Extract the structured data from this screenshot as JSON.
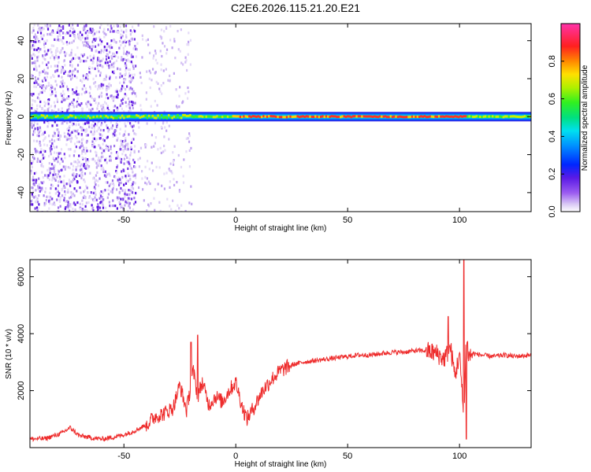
{
  "title": "C2E6.2026.115.21.20.E21",
  "colors": {
    "snr_line": "#ee2b2b",
    "spectrogram_colormap": [
      "#ffffff",
      "#d9c8f5",
      "#9b5cf0",
      "#3a0fe0",
      "#0036ff",
      "#00a8ff",
      "#00e6e0",
      "#00e070",
      "#40f020",
      "#c8f000",
      "#ffcc00",
      "#ff6600",
      "#ee1133",
      "#ff33aa"
    ]
  },
  "chart_data": [
    {
      "type": "heatmap",
      "title": "C2E6.2026.115.21.20.E21",
      "xlabel": "Height of straight line (km)",
      "ylabel": "Frequency (Hz)",
      "xlim": [
        -92,
        132
      ],
      "ylim": [
        -50,
        49
      ],
      "x_ticks": [
        -50,
        0,
        50,
        100
      ],
      "y_ticks": [
        -40,
        -20,
        0,
        20,
        40
      ],
      "colorbar": {
        "label": "Normalized spectral amplitude",
        "range": [
          0,
          1
        ],
        "ticks": [
          "0.0",
          "0.2",
          "0.4",
          "0.6",
          "0.8"
        ]
      },
      "features": [
        {
          "name": "narrow band at 0 Hz",
          "x_range": [
            -92,
            132
          ],
          "freq_center": 0,
          "amplitude": "high"
        },
        {
          "name": "broadband noise",
          "x_range": [
            -92,
            -45
          ],
          "freq_range": [
            -50,
            49
          ],
          "amplitude": "low"
        },
        {
          "name": "sparse noise",
          "x_range": [
            -45,
            -20
          ],
          "freq_range": [
            -50,
            49
          ],
          "amplitude": "very low"
        }
      ]
    },
    {
      "type": "line",
      "xlabel": "Height of straight line (km)",
      "ylabel": "SNR (10 * v/v)",
      "xlim": [
        -92,
        132
      ],
      "ylim": [
        0,
        6600
      ],
      "x_ticks": [
        -50,
        0,
        50,
        100
      ],
      "y_ticks": [
        2000,
        4000,
        6000
      ],
      "series": [
        {
          "x": [
            -92,
            -85,
            -78,
            -74,
            -70,
            -65,
            -60,
            -55,
            -50,
            -45,
            -40,
            -36,
            -32,
            -28,
            -25,
            -22,
            -19,
            -17,
            -15,
            -12,
            -9,
            -6,
            -3,
            0,
            3,
            5,
            8,
            12,
            16,
            20,
            25,
            30,
            35,
            40,
            45,
            50,
            55,
            60,
            65,
            70,
            75,
            80,
            85,
            90,
            93,
            96,
            98,
            100,
            102,
            103,
            104,
            106,
            110,
            115,
            120,
            125,
            132
          ],
          "y": [
            300,
            320,
            500,
            700,
            420,
            350,
            300,
            360,
            450,
            600,
            800,
            1100,
            1200,
            1400,
            2200,
            1300,
            2700,
            1800,
            2300,
            1500,
            1800,
            1600,
            2000,
            2300,
            1400,
            1000,
            1400,
            2000,
            2400,
            2700,
            2900,
            3000,
            3050,
            3100,
            3150,
            3200,
            3250,
            3250,
            3300,
            3350,
            3350,
            3400,
            3400,
            3300,
            3100,
            3500,
            2500,
            3300,
            900,
            4200,
            3200,
            3300,
            3250,
            3200,
            3250,
            3200,
            3250
          ],
          "peaks": [
            {
              "x": 102,
              "y": 6600
            },
            {
              "x": 103,
              "y": 300
            },
            {
              "x": 95,
              "y": 4600
            },
            {
              "x": -17,
              "y": 3950
            },
            {
              "x": -20,
              "y": 3700
            }
          ]
        }
      ]
    }
  ]
}
